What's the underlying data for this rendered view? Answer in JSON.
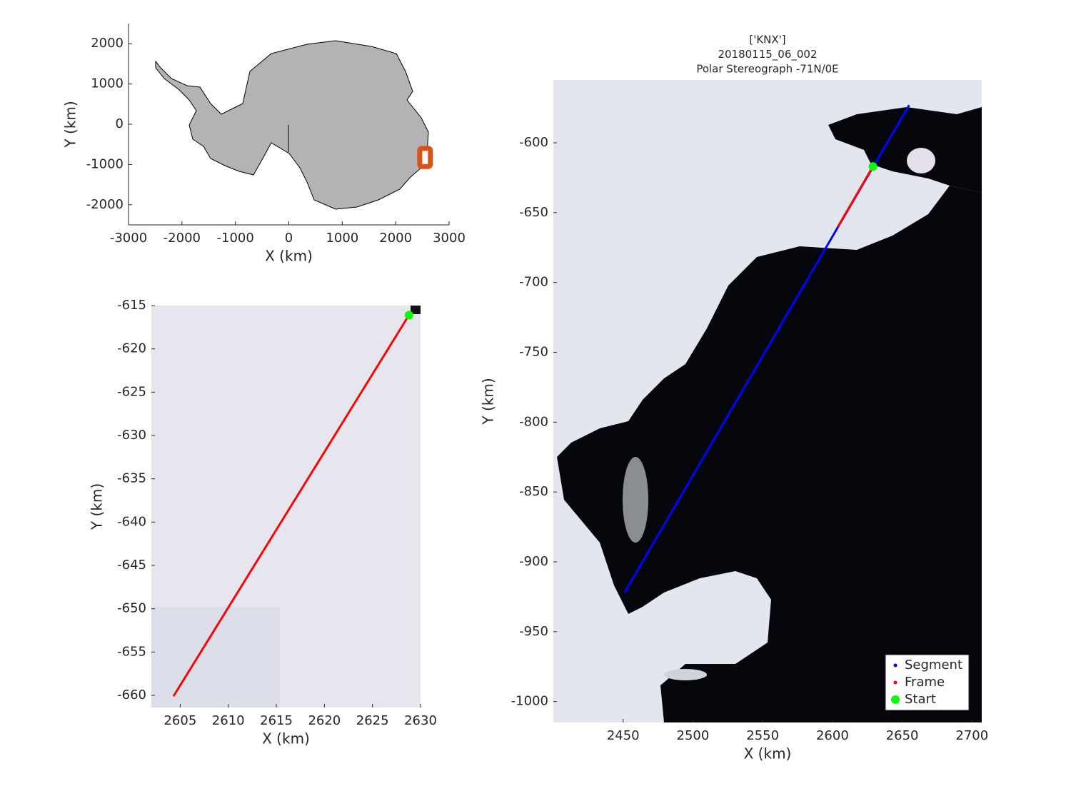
{
  "chart_data": [
    {
      "type": "map",
      "xlabel": "X (km)",
      "ylabel": "Y (km)",
      "xlim": [
        -3000,
        3000
      ],
      "ylim": [
        -2500,
        2500
      ],
      "xticks": [
        -3000,
        -2000,
        -1000,
        0,
        1000,
        2000,
        3000
      ],
      "yticks": [
        -2000,
        -1000,
        0,
        1000,
        2000
      ],
      "region": {
        "color": "#d95319",
        "x": [
          2450,
          2650
        ],
        "y": [
          -1050,
          -600
        ]
      }
    },
    {
      "type": "map",
      "xlabel": "X (km)",
      "ylabel": "Y (km)",
      "xlim": [
        2602,
        2630
      ],
      "ylim": [
        -661.4,
        -615
      ],
      "xticks": [
        2605,
        2610,
        2615,
        2620,
        2625,
        2630
      ],
      "yticks": [
        -660,
        -655,
        -650,
        -645,
        -640,
        -635,
        -630,
        -625,
        -620,
        -615
      ],
      "series": [
        {
          "color": "#ff0000",
          "x": [
            2604.3,
            2628.8
          ],
          "y": [
            -660.1,
            -616.1
          ]
        }
      ],
      "start": {
        "color": "#00ff00",
        "x": [
          2628.8
        ],
        "y": [
          -616.1
        ]
      }
    },
    {
      "type": "map",
      "title": [
        "['KNX']",
        "20180115_06_002",
        "Polar Stereograph -71N/0E"
      ],
      "xlabel": "X (km)",
      "ylabel": "Y (km)",
      "xlim": [
        2400,
        2707
      ],
      "ylim": [
        -1015,
        -555
      ],
      "xticks": [
        2450,
        2500,
        2550,
        2600,
        2650,
        2700
      ],
      "yticks": [
        -1000,
        -950,
        -900,
        -850,
        -800,
        -750,
        -700,
        -650,
        -600
      ],
      "series": [
        {
          "name": "Segment",
          "color": "#0000ff",
          "x": [
            2655,
            2451
          ],
          "y": [
            -573,
            -922
          ]
        },
        {
          "name": "Frame",
          "color": "#ff0000",
          "x": [
            2629,
            2604
          ],
          "y": [
            -617,
            -660
          ]
        }
      ],
      "start": {
        "name": "Start",
        "color": "#00ff00",
        "x": [
          2629
        ],
        "y": [
          -617
        ]
      },
      "legend": "lower right"
    }
  ]
}
